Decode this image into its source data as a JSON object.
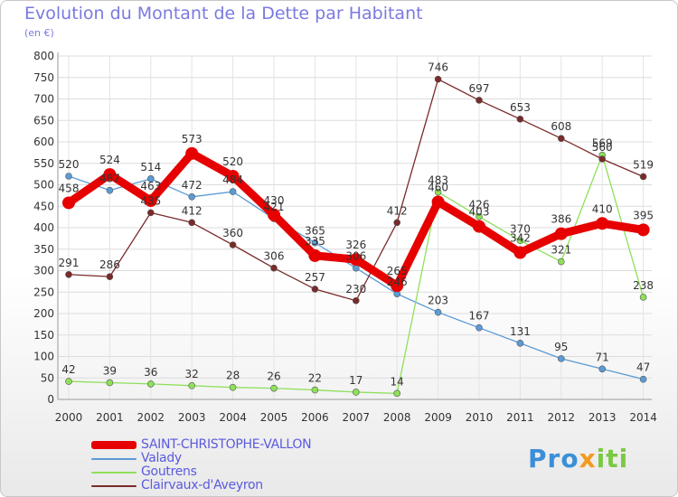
{
  "title": "Evolution du Montant de la Dette par Habitant",
  "unit": "(en €)",
  "logo": {
    "p1": "Pro",
    "p2": "x",
    "p3": "iti"
  },
  "chart_data": {
    "type": "line",
    "ylim": [
      0,
      800
    ],
    "y_ticks": [
      0,
      50,
      100,
      150,
      200,
      250,
      300,
      350,
      400,
      450,
      500,
      550,
      600,
      650,
      700,
      750,
      800
    ],
    "categories": [
      "2000",
      "2001",
      "2002",
      "2003",
      "2004",
      "2005",
      "2006",
      "2007",
      "2008",
      "2009",
      "2010",
      "2011",
      "2012",
      "2013",
      "2014"
    ],
    "grid": true,
    "legend_position": "bottom-left",
    "series": [
      {
        "name": "SAINT-CHRISTOPHE-VALLON",
        "color": "#e60000",
        "values": [
          458,
          524,
          463,
          573,
          520,
          430,
          335,
          326,
          265,
          460,
          403,
          342,
          386,
          410,
          395
        ],
        "labels": [
          "458",
          "524",
          "463",
          "573",
          "520",
          "430",
          "335",
          "326",
          "265",
          "460",
          "403",
          "342",
          "386",
          "410",
          "395"
        ]
      },
      {
        "name": "Valady",
        "color": "#5b9bd5",
        "values": [
          520,
          487,
          514,
          472,
          484,
          421,
          365,
          306,
          246,
          203,
          167,
          131,
          95,
          71,
          47
        ],
        "labels": [
          "520",
          "487",
          "514",
          "472",
          "484",
          "421",
          "365",
          "306",
          "246",
          "203",
          "167",
          "131",
          "95",
          "71",
          "47"
        ]
      },
      {
        "name": "Goutrens",
        "color": "#8ee05a",
        "values": [
          42,
          39,
          36,
          32,
          28,
          26,
          22,
          17,
          14,
          483,
          426,
          370,
          321,
          569,
          238
        ],
        "labels": [
          "42",
          "39",
          "36",
          "32",
          "28",
          "26",
          "22",
          "17",
          "14",
          "483",
          "426",
          "370",
          "321",
          "569",
          "238"
        ]
      },
      {
        "name": "Clairvaux-d'Aveyron",
        "color": "#7a2a2a",
        "values": [
          291,
          286,
          435,
          412,
          360,
          306,
          257,
          230,
          412,
          746,
          697,
          653,
          608,
          560,
          519
        ],
        "labels": [
          "291",
          "286",
          "435",
          "412",
          "360",
          "306",
          "257",
          "230",
          "412",
          "746",
          "697",
          "653",
          "608",
          "560",
          "519"
        ]
      }
    ]
  }
}
